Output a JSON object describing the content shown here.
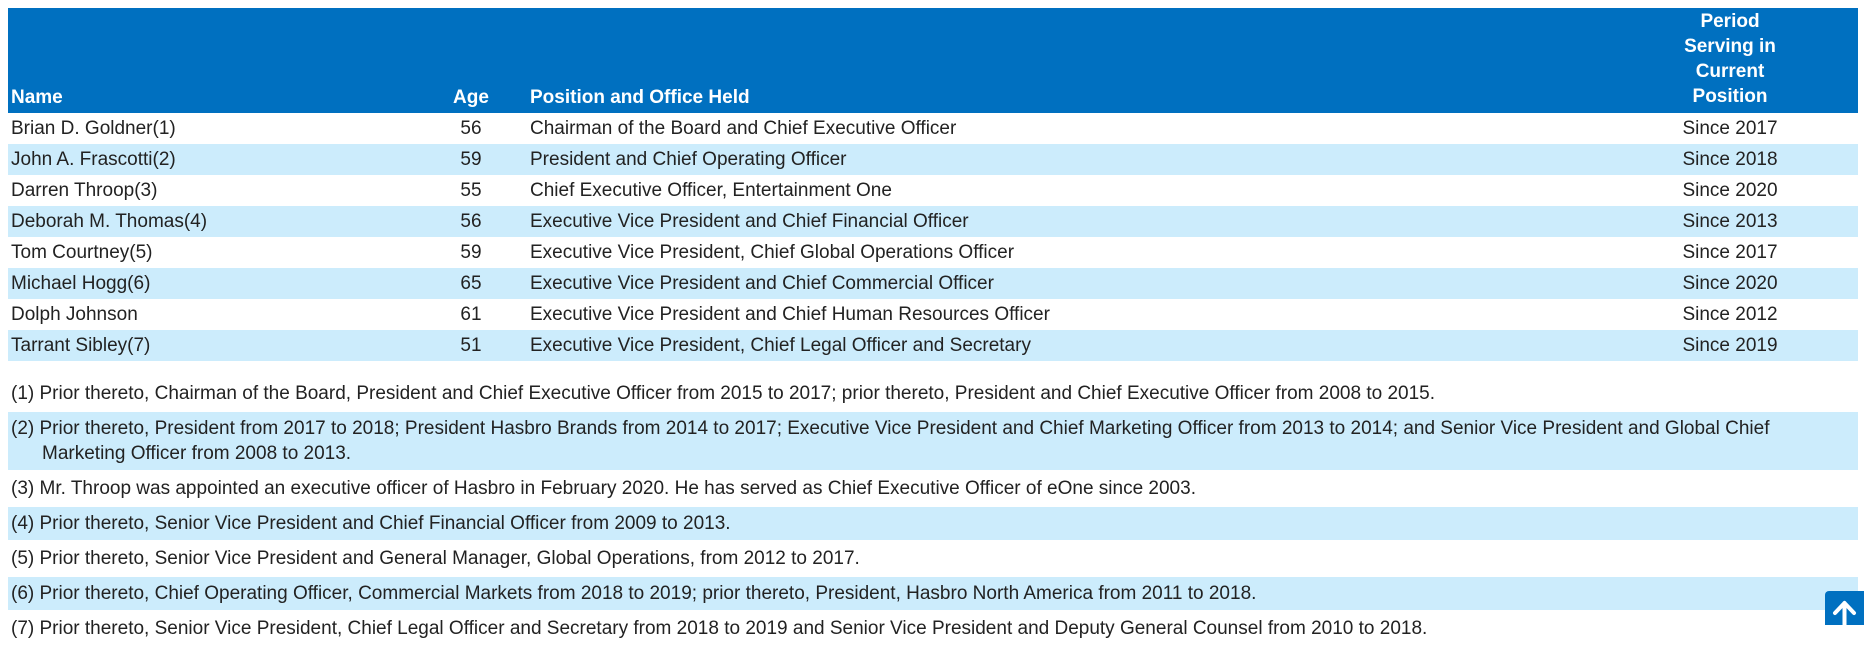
{
  "table": {
    "headers": [
      "Name",
      "Age",
      "Position and Office Held",
      "Period Serving in Current Position"
    ],
    "rows": [
      [
        "Brian D. Goldner(1)",
        56,
        "Chairman of the Board and Chief Executive Officer",
        "Since 2017"
      ],
      [
        "John A. Frascotti(2)",
        59,
        "President and Chief Operating Officer",
        "Since 2018"
      ],
      [
        "Darren Throop(3)",
        55,
        "Chief Executive Officer, Entertainment One",
        "Since 2020"
      ],
      [
        "Deborah M. Thomas(4)",
        56,
        "Executive Vice President and Chief Financial Officer",
        "Since 2013"
      ],
      [
        "Tom Courtney(5)",
        59,
        "Executive Vice President, Chief Global Operations Officer",
        "Since 2017"
      ],
      [
        "Michael Hogg(6)",
        65,
        "Executive Vice President and Chief Commercial Officer",
        "Since 2020"
      ],
      [
        "Dolph Johnson",
        61,
        "Executive Vice President and Chief Human Resources Officer",
        "Since 2012"
      ],
      [
        "Tarrant Sibley(7)",
        51,
        "Executive Vice President, Chief Legal Officer and Secretary",
        "Since 2019"
      ]
    ]
  },
  "footnotes": [
    "(1) Prior thereto, Chairman of the Board, President and Chief Executive Officer from 2015 to 2017; prior thereto, President and Chief Executive Officer from 2008 to 2015.",
    "(2) Prior thereto, President from 2017 to 2018; President Hasbro Brands from 2014 to 2017; Executive Vice President and Chief Marketing Officer from 2013 to 2014; and Senior Vice President and Global Chief Marketing Officer from 2008 to 2013.",
    "(3) Mr. Throop was appointed an executive officer of Hasbro in February 2020. He has served as Chief Executive Officer of eOne since 2003.",
    "(4) Prior thereto, Senior Vice President and Chief Financial Officer from 2009 to 2013.",
    "(5) Prior thereto, Senior Vice President and General Manager, Global Operations, from 2012 to 2017.",
    "(6) Prior thereto, Chief Operating Officer, Commercial Markets from 2018 to 2019; prior thereto, President, Hasbro North America from 2011 to 2018.",
    "(7) Prior thereto, Senior Vice President, Chief Legal Officer and Secretary from 2018 to 2019 and Senior Vice President and Deputy General Counsel from 2010 to 2018."
  ]
}
